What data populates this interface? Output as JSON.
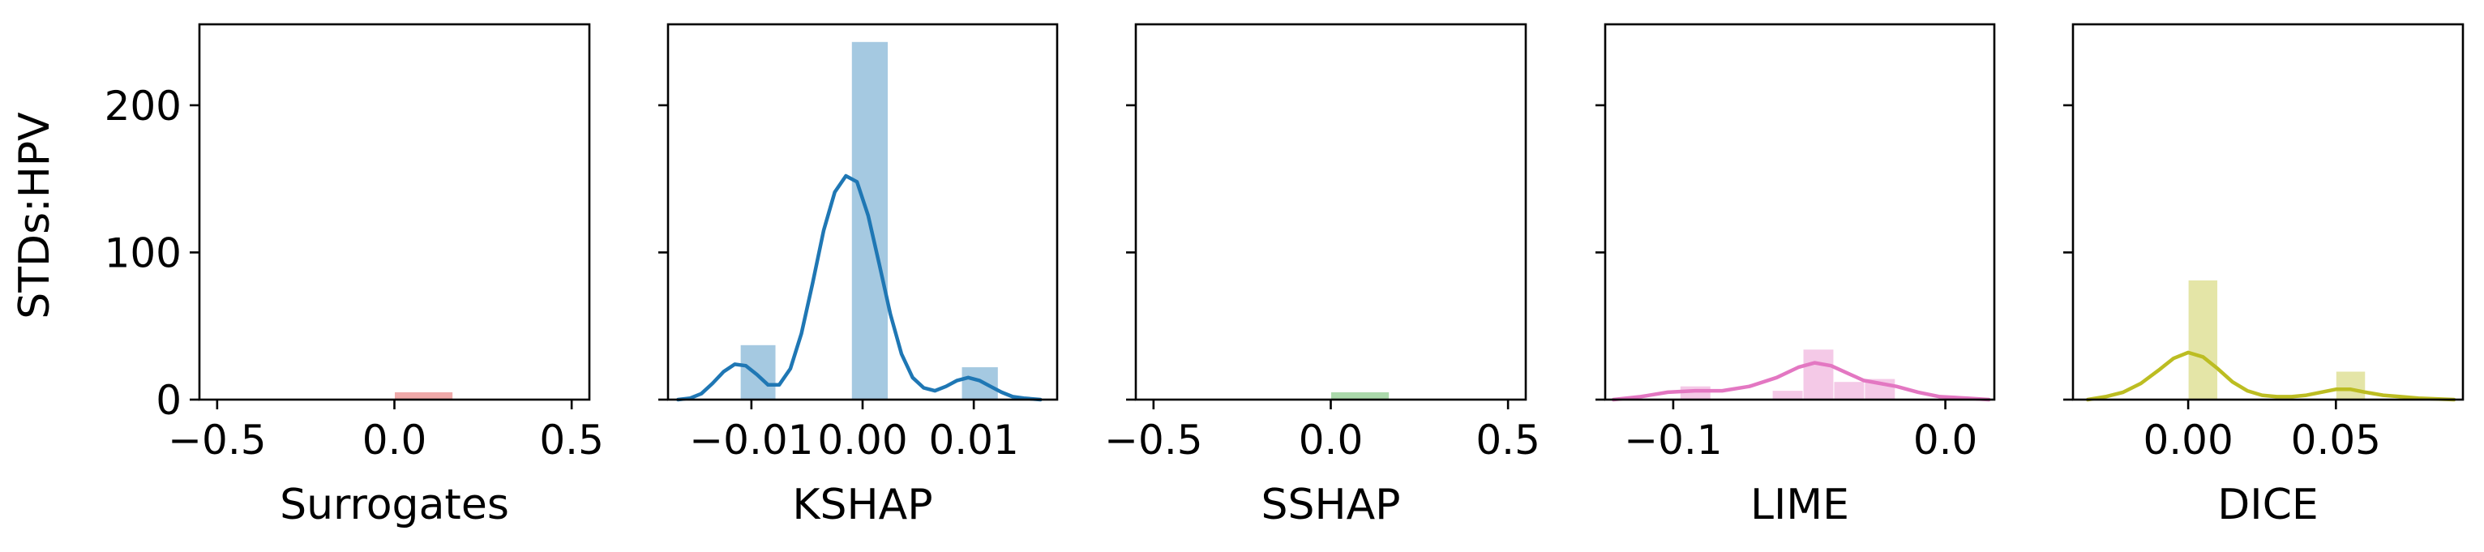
{
  "figure": {
    "ylabel": "STDs:HPV"
  },
  "chart_data": [
    {
      "type": "bar",
      "xlabel": "Surrogates",
      "xlim": [
        -0.55,
        0.55
      ],
      "xticks": [
        -0.5,
        0.0,
        0.5
      ],
      "xtick_labels": [
        "−0.5",
        "0.0",
        "0.5"
      ],
      "ylim": [
        0,
        255
      ],
      "yticks": [
        0,
        100,
        200
      ],
      "ytick_labels": [
        "0",
        "100",
        "200"
      ],
      "color": "#d62728",
      "bars": [
        {
          "x0": 0.0,
          "x1": 0.165,
          "value": 5
        }
      ],
      "kde": []
    },
    {
      "type": "bar",
      "xlabel": "KSHAP",
      "xlim": [
        -0.0175,
        0.0175
      ],
      "xticks": [
        -0.01,
        0.0,
        0.01
      ],
      "xtick_labels": [
        "−0.01",
        "0.00",
        "0.01"
      ],
      "ylim": [
        0,
        255
      ],
      "yticks": [
        0,
        100,
        200
      ],
      "ytick_labels": [
        "",
        "",
        ""
      ],
      "color": "#1f77b4",
      "bars": [
        {
          "x0": -0.011,
          "x1": -0.0078,
          "value": 37
        },
        {
          "x0": -0.0078,
          "x1": -0.0044,
          "value": 0
        },
        {
          "x0": -0.0044,
          "x1": -0.001,
          "value": 0
        },
        {
          "x0": -0.001,
          "x1": 0.0023,
          "value": 243
        },
        {
          "x0": 0.0023,
          "x1": 0.0056,
          "value": 0
        },
        {
          "x0": 0.0056,
          "x1": 0.0089,
          "value": 0
        },
        {
          "x0": 0.0089,
          "x1": 0.0122,
          "value": 22
        }
      ],
      "kde": [
        [
          -0.0166,
          0
        ],
        [
          -0.0155,
          1
        ],
        [
          -0.0145,
          4
        ],
        [
          -0.0135,
          11
        ],
        [
          -0.0125,
          19
        ],
        [
          -0.0115,
          24
        ],
        [
          -0.0105,
          23
        ],
        [
          -0.0095,
          17
        ],
        [
          -0.0085,
          10
        ],
        [
          -0.0075,
          10
        ],
        [
          -0.0065,
          21
        ],
        [
          -0.0055,
          45
        ],
        [
          -0.0045,
          79
        ],
        [
          -0.0035,
          115
        ],
        [
          -0.0025,
          141
        ],
        [
          -0.0015,
          152
        ],
        [
          -0.0005,
          148
        ],
        [
          0.0005,
          125
        ],
        [
          0.0015,
          92
        ],
        [
          0.0025,
          58
        ],
        [
          0.0035,
          31
        ],
        [
          0.0045,
          15
        ],
        [
          0.0055,
          8
        ],
        [
          0.0065,
          6
        ],
        [
          0.0075,
          9
        ],
        [
          0.0085,
          13
        ],
        [
          0.0095,
          15
        ],
        [
          0.0105,
          13
        ],
        [
          0.0115,
          9
        ],
        [
          0.0125,
          5
        ],
        [
          0.0135,
          2
        ],
        [
          0.0145,
          1
        ],
        [
          0.016,
          0
        ]
      ]
    },
    {
      "type": "bar",
      "xlabel": "SSHAP",
      "xlim": [
        -0.55,
        0.55
      ],
      "xticks": [
        -0.5,
        0.0,
        0.5
      ],
      "xtick_labels": [
        "−0.5",
        "0.0",
        "0.5"
      ],
      "ylim": [
        0,
        255
      ],
      "yticks": [
        0,
        100,
        200
      ],
      "ytick_labels": [
        "",
        "",
        ""
      ],
      "color": "#2ca02c",
      "bars": [
        {
          "x0": 0.0,
          "x1": 0.165,
          "value": 5
        }
      ],
      "kde": []
    },
    {
      "type": "bar",
      "xlabel": "LIME",
      "xlim": [
        -0.125,
        0.018
      ],
      "xticks": [
        -0.1,
        0.0
      ],
      "xtick_labels": [
        "−0.1",
        "0.0"
      ],
      "ylim": [
        0,
        255
      ],
      "yticks": [
        0,
        100,
        200
      ],
      "ytick_labels": [
        "",
        "",
        ""
      ],
      "color": "#e377c2",
      "bars": [
        {
          "x0": -0.0975,
          "x1": -0.0862,
          "value": 9
        },
        {
          "x0": -0.0862,
          "x1": -0.0749,
          "value": 0
        },
        {
          "x0": -0.0749,
          "x1": -0.0636,
          "value": 0
        },
        {
          "x0": -0.0636,
          "x1": -0.0523,
          "value": 6
        },
        {
          "x0": -0.0523,
          "x1": -0.041,
          "value": 34
        },
        {
          "x0": -0.041,
          "x1": -0.0297,
          "value": 12
        },
        {
          "x0": -0.0297,
          "x1": -0.0184,
          "value": 14
        }
      ],
      "kde": [
        [
          -0.122,
          0
        ],
        [
          -0.112,
          2
        ],
        [
          -0.102,
          5
        ],
        [
          -0.092,
          6
        ],
        [
          -0.082,
          6
        ],
        [
          -0.072,
          9
        ],
        [
          -0.062,
          15
        ],
        [
          -0.054,
          22
        ],
        [
          -0.048,
          25
        ],
        [
          -0.042,
          23
        ],
        [
          -0.036,
          18
        ],
        [
          -0.03,
          13
        ],
        [
          -0.024,
          11
        ],
        [
          -0.018,
          9
        ],
        [
          -0.01,
          5
        ],
        [
          -0.002,
          2
        ],
        [
          0.008,
          1
        ],
        [
          0.016,
          0
        ]
      ]
    },
    {
      "type": "bar",
      "xlabel": "DICE",
      "xlim": [
        -0.039,
        0.093
      ],
      "xticks": [
        0.0,
        0.05
      ],
      "xtick_labels": [
        "0.00",
        "0.05"
      ],
      "ylim": [
        0,
        255
      ],
      "yticks": [
        0,
        100,
        200
      ],
      "ytick_labels": [
        "",
        "",
        ""
      ],
      "color": "#bcbd22",
      "bars": [
        {
          "x0": 0.0,
          "x1": 0.01,
          "value": 81
        },
        {
          "x0": 0.01,
          "x1": 0.02,
          "value": 0
        },
        {
          "x0": 0.02,
          "x1": 0.03,
          "value": 0
        },
        {
          "x0": 0.03,
          "x1": 0.04,
          "value": 0
        },
        {
          "x0": 0.04,
          "x1": 0.05,
          "value": 0
        },
        {
          "x0": 0.05,
          "x1": 0.06,
          "value": 19
        }
      ],
      "kde": [
        [
          -0.034,
          0
        ],
        [
          -0.028,
          2
        ],
        [
          -0.022,
          5
        ],
        [
          -0.016,
          11
        ],
        [
          -0.01,
          20
        ],
        [
          -0.005,
          28
        ],
        [
          0.0,
          32
        ],
        [
          0.005,
          29
        ],
        [
          0.01,
          21
        ],
        [
          0.015,
          12
        ],
        [
          0.02,
          6
        ],
        [
          0.025,
          3
        ],
        [
          0.03,
          2
        ],
        [
          0.035,
          2
        ],
        [
          0.04,
          3
        ],
        [
          0.045,
          5
        ],
        [
          0.05,
          7
        ],
        [
          0.055,
          7
        ],
        [
          0.06,
          5
        ],
        [
          0.066,
          3
        ],
        [
          0.072,
          2
        ],
        [
          0.078,
          1
        ],
        [
          0.09,
          0
        ]
      ]
    }
  ]
}
